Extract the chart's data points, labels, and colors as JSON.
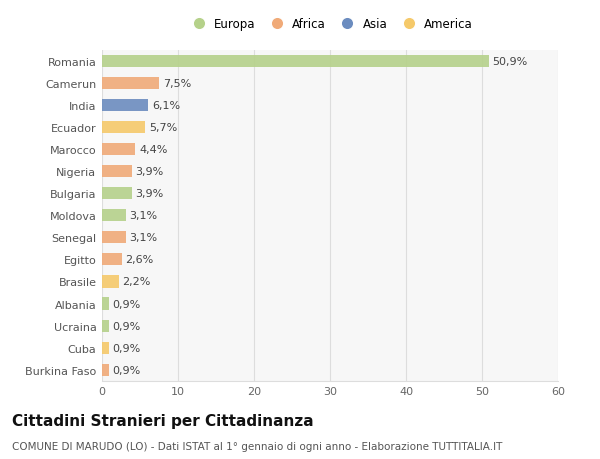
{
  "countries": [
    "Romania",
    "Camerun",
    "India",
    "Ecuador",
    "Marocco",
    "Nigeria",
    "Bulgaria",
    "Moldova",
    "Senegal",
    "Egitto",
    "Brasile",
    "Albania",
    "Ucraina",
    "Cuba",
    "Burkina Faso"
  ],
  "values": [
    50.9,
    7.5,
    6.1,
    5.7,
    4.4,
    3.9,
    3.9,
    3.1,
    3.1,
    2.6,
    2.2,
    0.9,
    0.9,
    0.9,
    0.9
  ],
  "labels": [
    "50,9%",
    "7,5%",
    "6,1%",
    "5,7%",
    "4,4%",
    "3,9%",
    "3,9%",
    "3,1%",
    "3,1%",
    "2,6%",
    "2,2%",
    "0,9%",
    "0,9%",
    "0,9%",
    "0,9%"
  ],
  "colors": [
    "#b5d18a",
    "#f0aa78",
    "#6b8cbf",
    "#f5c96a",
    "#f0aa78",
    "#f0aa78",
    "#b5d18a",
    "#b5d18a",
    "#f0aa78",
    "#f0aa78",
    "#f5c96a",
    "#b5d18a",
    "#b5d18a",
    "#f5c96a",
    "#f0aa78"
  ],
  "legend_labels": [
    "Europa",
    "Africa",
    "Asia",
    "America"
  ],
  "legend_colors": [
    "#b5d18a",
    "#f0aa78",
    "#6b8cbf",
    "#f5c96a"
  ],
  "xlim": [
    0,
    60
  ],
  "xticks": [
    0,
    10,
    20,
    30,
    40,
    50,
    60
  ],
  "title": "Cittadini Stranieri per Cittadinanza",
  "subtitle": "COMUNE DI MARUDO (LO) - Dati ISTAT al 1° gennaio di ogni anno - Elaborazione TUTTITALIA.IT",
  "background_color": "#ffffff",
  "plot_bg_color": "#f7f7f7",
  "grid_color": "#dddddd",
  "bar_height": 0.55,
  "label_fontsize": 8,
  "tick_fontsize": 8,
  "title_fontsize": 11,
  "subtitle_fontsize": 7.5
}
